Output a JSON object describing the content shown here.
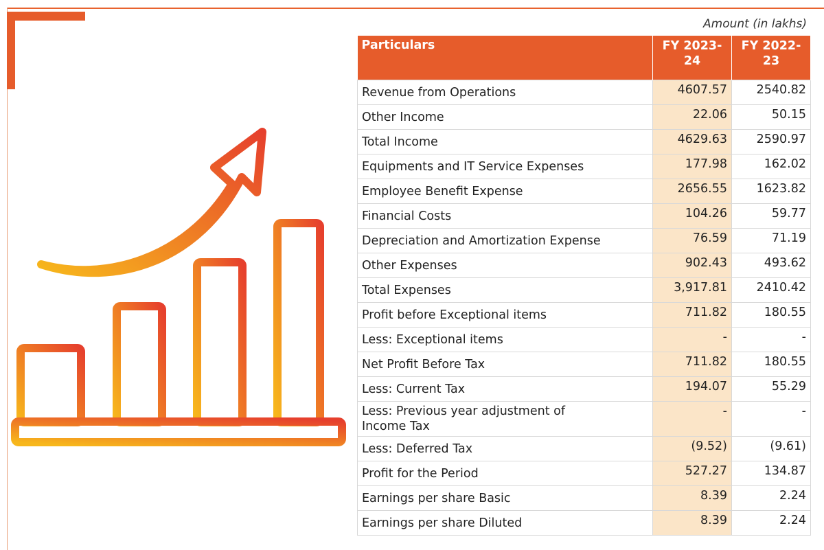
{
  "table": {
    "note": "Amount (in lakhs)",
    "header": [
      "Particulars",
      "FY 2023-24",
      "FY 2022-23"
    ],
    "rows": [
      [
        "Revenue from Operations",
        "4607.57",
        "2540.82"
      ],
      [
        "Other Income",
        "22.06",
        "50.15"
      ],
      [
        "Total Income",
        "4629.63",
        "2590.97"
      ],
      [
        "Equipments and IT Service Expenses",
        "177.98",
        "162.02"
      ],
      [
        "Employee Benefit Expense",
        "2656.55",
        "1623.82"
      ],
      [
        "Financial Costs",
        "104.26",
        "59.77"
      ],
      [
        "Depreciation and Amortization Expense",
        "76.59",
        "71.19"
      ],
      [
        "Other Expenses",
        "902.43",
        "493.62"
      ],
      [
        "Total Expenses",
        "3,917.81",
        "2410.42"
      ],
      [
        "Profit before Exceptional items",
        "711.82",
        "180.55"
      ],
      [
        "Less: Exceptional items",
        "-",
        "-"
      ],
      [
        "Net Profit Before Tax",
        "711.82",
        "180.55"
      ],
      [
        "Less: Current Tax",
        "194.07",
        "55.29"
      ],
      [
        "Less: Previous year adjustment of Income Tax",
        "-",
        "-"
      ],
      [
        "Less: Deferred Tax",
        "(9.52)",
        "(9.61)"
      ],
      [
        "Profit for the Period",
        "527.27",
        "134.87"
      ],
      [
        "Earnings per share Basic",
        "8.39",
        "2.24"
      ],
      [
        "Earnings per share Diluted",
        "8.39",
        "2.24"
      ]
    ]
  }
}
